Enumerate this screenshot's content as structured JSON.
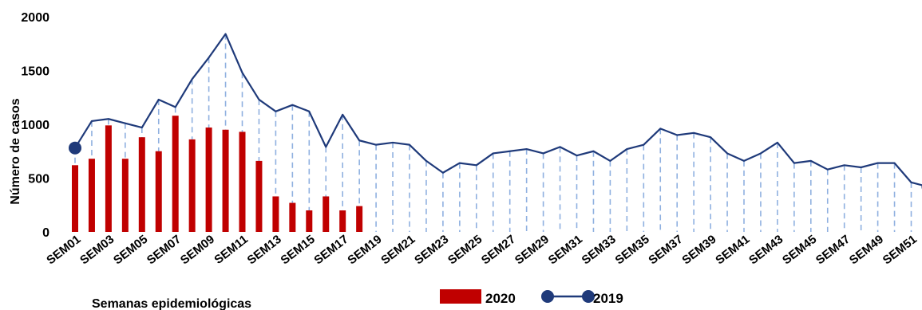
{
  "chart_data": {
    "type": "bar",
    "title": "",
    "xlabel": "Semanas epidemiológicas",
    "ylabel": "Número de casos",
    "ylim": [
      0,
      2000
    ],
    "yticks": [
      "2000",
      "1500",
      "1000",
      "500",
      "0"
    ],
    "xtick_labels": [
      "SEM01",
      "SEM03",
      "SEM05",
      "SEM07",
      "SEM09",
      "SEM11",
      "SEM13",
      "SEM15",
      "SEM17",
      "SEM19",
      "SEM21",
      "SEM23",
      "SEM25",
      "SEM27",
      "SEM29",
      "SEM31",
      "SEM33",
      "SEM35",
      "SEM37",
      "SEM39",
      "SEM41",
      "SEM43",
      "SEM45",
      "SEM47",
      "SEM49",
      "SEM51"
    ],
    "grid": false,
    "legend_position": "bottom",
    "series": [
      {
        "name": "2020",
        "type": "bar",
        "color": "#c00000",
        "values": [
          620,
          680,
          990,
          680,
          880,
          750,
          1080,
          860,
          970,
          950,
          930,
          660,
          330,
          270,
          200,
          330,
          200,
          240
        ]
      },
      {
        "name": "2019",
        "type": "line",
        "color": "#1f3a7a",
        "droplines": true,
        "values": [
          780,
          1030,
          1050,
          1010,
          970,
          1230,
          1160,
          1420,
          1620,
          1840,
          1480,
          1230,
          1120,
          1180,
          1120,
          790,
          1090,
          850,
          810,
          830,
          810,
          660,
          550,
          640,
          620,
          730,
          750,
          770,
          730,
          790,
          710,
          750,
          660,
          770,
          810,
          960,
          900,
          920,
          880,
          730,
          660,
          730,
          830,
          640,
          660,
          580,
          620,
          600,
          640,
          640,
          460,
          420
        ]
      }
    ]
  }
}
